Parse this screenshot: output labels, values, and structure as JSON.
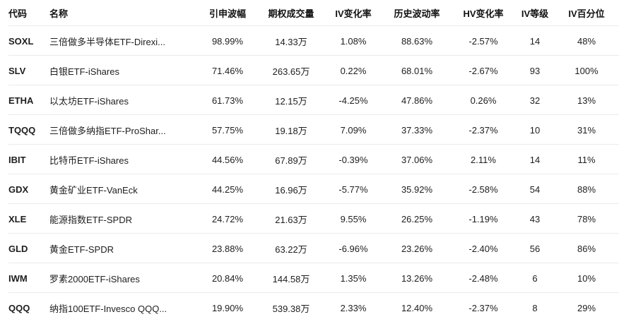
{
  "colors": {
    "background": "#ffffff",
    "header_text": "#111111",
    "row_text": "#1e1e1e",
    "divider": "#ebebeb"
  },
  "table": {
    "columns": [
      {
        "key": "code",
        "label": "代码"
      },
      {
        "key": "name",
        "label": "名称"
      },
      {
        "key": "iv",
        "label": "引申波幅"
      },
      {
        "key": "volume",
        "label": "期权成交量"
      },
      {
        "key": "iv_change",
        "label": "IV变化率"
      },
      {
        "key": "hv",
        "label": "历史波动率"
      },
      {
        "key": "hv_change",
        "label": "HV变化率"
      },
      {
        "key": "iv_rank",
        "label": "IV等级"
      },
      {
        "key": "iv_percentile",
        "label": "IV百分位"
      }
    ],
    "rows": [
      {
        "code": "SOXL",
        "name": "三倍做多半导体ETF-Direxi...",
        "iv": "98.99%",
        "volume": "14.33万",
        "iv_change": "1.08%",
        "hv": "88.63%",
        "hv_change": "-2.57%",
        "iv_rank": "14",
        "iv_percentile": "48%"
      },
      {
        "code": "SLV",
        "name": "白银ETF-iShares",
        "iv": "71.46%",
        "volume": "263.65万",
        "iv_change": "0.22%",
        "hv": "68.01%",
        "hv_change": "-2.67%",
        "iv_rank": "93",
        "iv_percentile": "100%"
      },
      {
        "code": "ETHA",
        "name": "以太坊ETF-iShares",
        "iv": "61.73%",
        "volume": "12.15万",
        "iv_change": "-4.25%",
        "hv": "47.86%",
        "hv_change": "0.26%",
        "iv_rank": "32",
        "iv_percentile": "13%"
      },
      {
        "code": "TQQQ",
        "name": "三倍做多纳指ETF-ProShar...",
        "iv": "57.75%",
        "volume": "19.18万",
        "iv_change": "7.09%",
        "hv": "37.33%",
        "hv_change": "-2.37%",
        "iv_rank": "10",
        "iv_percentile": "31%"
      },
      {
        "code": "IBIT",
        "name": "比特币ETF-iShares",
        "iv": "44.56%",
        "volume": "67.89万",
        "iv_change": "-0.39%",
        "hv": "37.06%",
        "hv_change": "2.11%",
        "iv_rank": "14",
        "iv_percentile": "11%"
      },
      {
        "code": "GDX",
        "name": "黄金矿业ETF-VanEck",
        "iv": "44.25%",
        "volume": "16.96万",
        "iv_change": "-5.77%",
        "hv": "35.92%",
        "hv_change": "-2.58%",
        "iv_rank": "54",
        "iv_percentile": "88%"
      },
      {
        "code": "XLE",
        "name": "能源指数ETF-SPDR",
        "iv": "24.72%",
        "volume": "21.63万",
        "iv_change": "9.55%",
        "hv": "26.25%",
        "hv_change": "-1.19%",
        "iv_rank": "43",
        "iv_percentile": "78%"
      },
      {
        "code": "GLD",
        "name": "黄金ETF-SPDR",
        "iv": "23.88%",
        "volume": "63.22万",
        "iv_change": "-6.96%",
        "hv": "23.26%",
        "hv_change": "-2.40%",
        "iv_rank": "56",
        "iv_percentile": "86%"
      },
      {
        "code": "IWM",
        "name": "罗素2000ETF-iShares",
        "iv": "20.84%",
        "volume": "144.58万",
        "iv_change": "1.35%",
        "hv": "13.26%",
        "hv_change": "-2.48%",
        "iv_rank": "6",
        "iv_percentile": "10%"
      },
      {
        "code": "QQQ",
        "name": "纳指100ETF-Invesco QQQ...",
        "iv": "19.90%",
        "volume": "539.38万",
        "iv_change": "2.33%",
        "hv": "12.40%",
        "hv_change": "-2.37%",
        "iv_rank": "8",
        "iv_percentile": "29%"
      }
    ]
  }
}
